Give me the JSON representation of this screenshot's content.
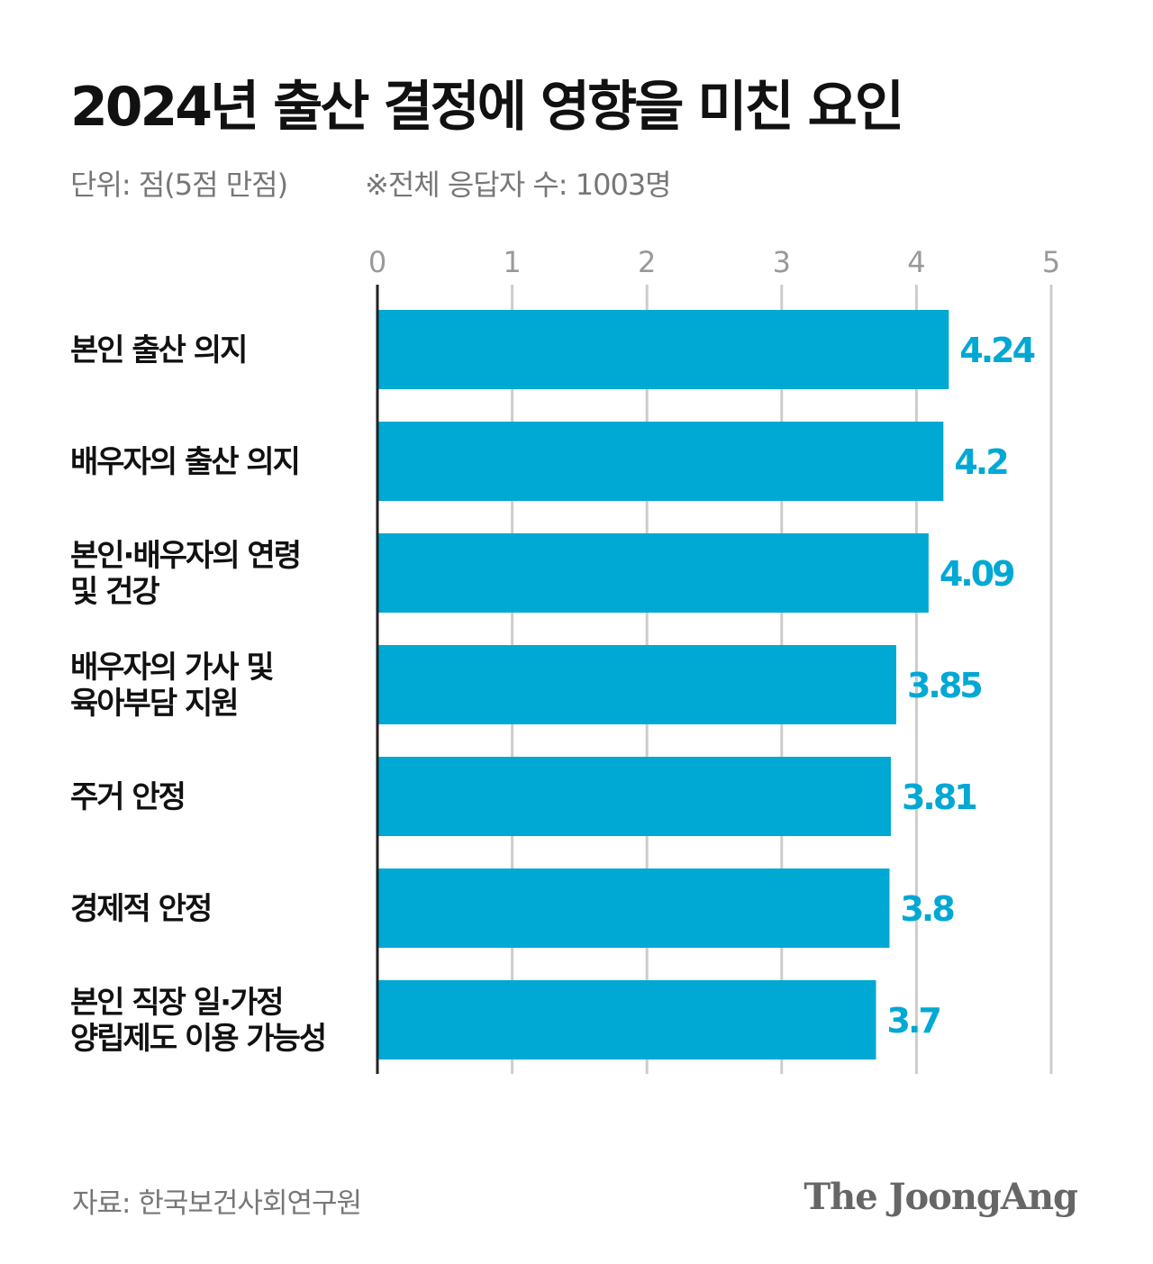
{
  "header": {
    "title": "2024년 출산 결정에 영향을 미친 요인",
    "unit": "단위: 점(5점 만점)",
    "note": "※전체 응답자 수: 1003명"
  },
  "footer": {
    "source": "자료: 한국보건사회연구원",
    "logo": "The JoongAng"
  },
  "chart_data": {
    "type": "bar",
    "orientation": "horizontal",
    "title": "2024년 출산 결정에 영향을 미친 요인",
    "categories": [
      [
        "본인 출산 의지"
      ],
      [
        "배우자의 출산 의지"
      ],
      [
        "본인·배우자의 연령",
        "및 건강"
      ],
      [
        "배우자의 가사 및",
        "육아부담 지원"
      ],
      [
        "주거 안정"
      ],
      [
        "경제적 안정"
      ],
      [
        "본인 직장 일·가정",
        "양립제도 이용 가능성"
      ]
    ],
    "values": [
      4.24,
      4.2,
      4.09,
      3.85,
      3.81,
      3.8,
      3.7
    ],
    "value_labels": [
      "4.24",
      "4.2",
      "4.09",
      "3.85",
      "3.81",
      "3.8",
      "3.7"
    ],
    "xlim": [
      0,
      5
    ],
    "ticks": [
      "0",
      "1",
      "2",
      "3",
      "4",
      "5"
    ],
    "grid": true,
    "colors": {
      "bar": "#00a8d4",
      "label": "#00a8d4",
      "grid": "#cccccc",
      "axis": "#222222",
      "tick": "#999999"
    }
  }
}
